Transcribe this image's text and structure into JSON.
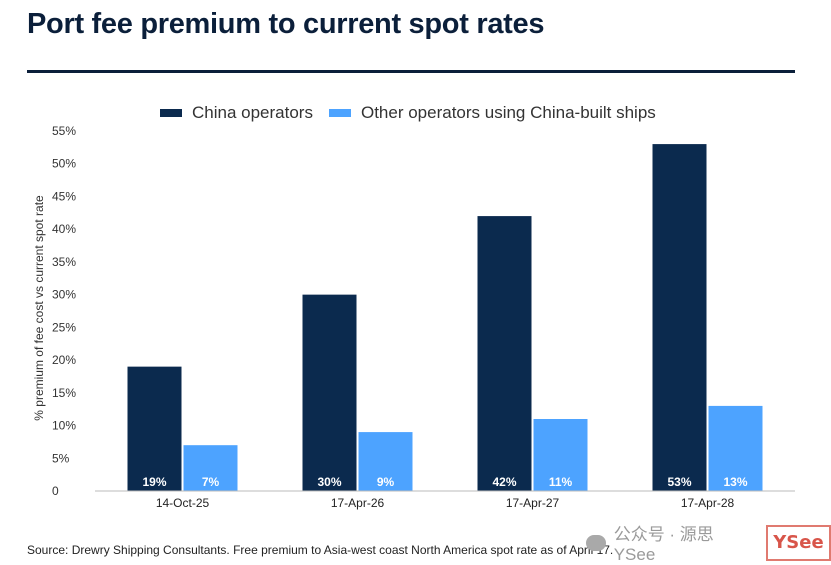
{
  "title": "Port fee premium to current spot rates",
  "source": "Source: Drewry Shipping Consultants. Free premium to Asia-west coast North America spot rate as of April 17.",
  "watermark": {
    "text": "公众号 · 源思 YSee",
    "logo_text": "YSee"
  },
  "colors": {
    "china": "#0b2a4e",
    "other": "#4da3ff",
    "title": "#0b1f3a"
  },
  "chart_data": {
    "type": "bar",
    "title": "Port fee premium to current spot rates",
    "xlabel": "",
    "ylabel": "% premium of fee cost vs current spot rate",
    "categories": [
      "14-Oct-25",
      "17-Apr-26",
      "17-Apr-27",
      "17-Apr-28"
    ],
    "series": [
      {
        "name": "China operators",
        "values": [
          19,
          30,
          42,
          53
        ],
        "labels": [
          "19%",
          "30%",
          "42%",
          "53%"
        ]
      },
      {
        "name": "Other operators using China-built ships",
        "values": [
          7,
          9,
          11,
          13
        ],
        "labels": [
          "7%",
          "9%",
          "11%",
          "13%"
        ]
      }
    ],
    "ylim": [
      0,
      55
    ],
    "yticks": [
      0,
      5,
      10,
      15,
      20,
      25,
      30,
      35,
      40,
      45,
      50,
      55
    ],
    "ytick_labels": [
      "0",
      "5%",
      "10%",
      "15%",
      "20%",
      "25%",
      "30%",
      "35%",
      "40%",
      "45%",
      "50%",
      "55%"
    ],
    "grid": false,
    "legend": "top"
  }
}
